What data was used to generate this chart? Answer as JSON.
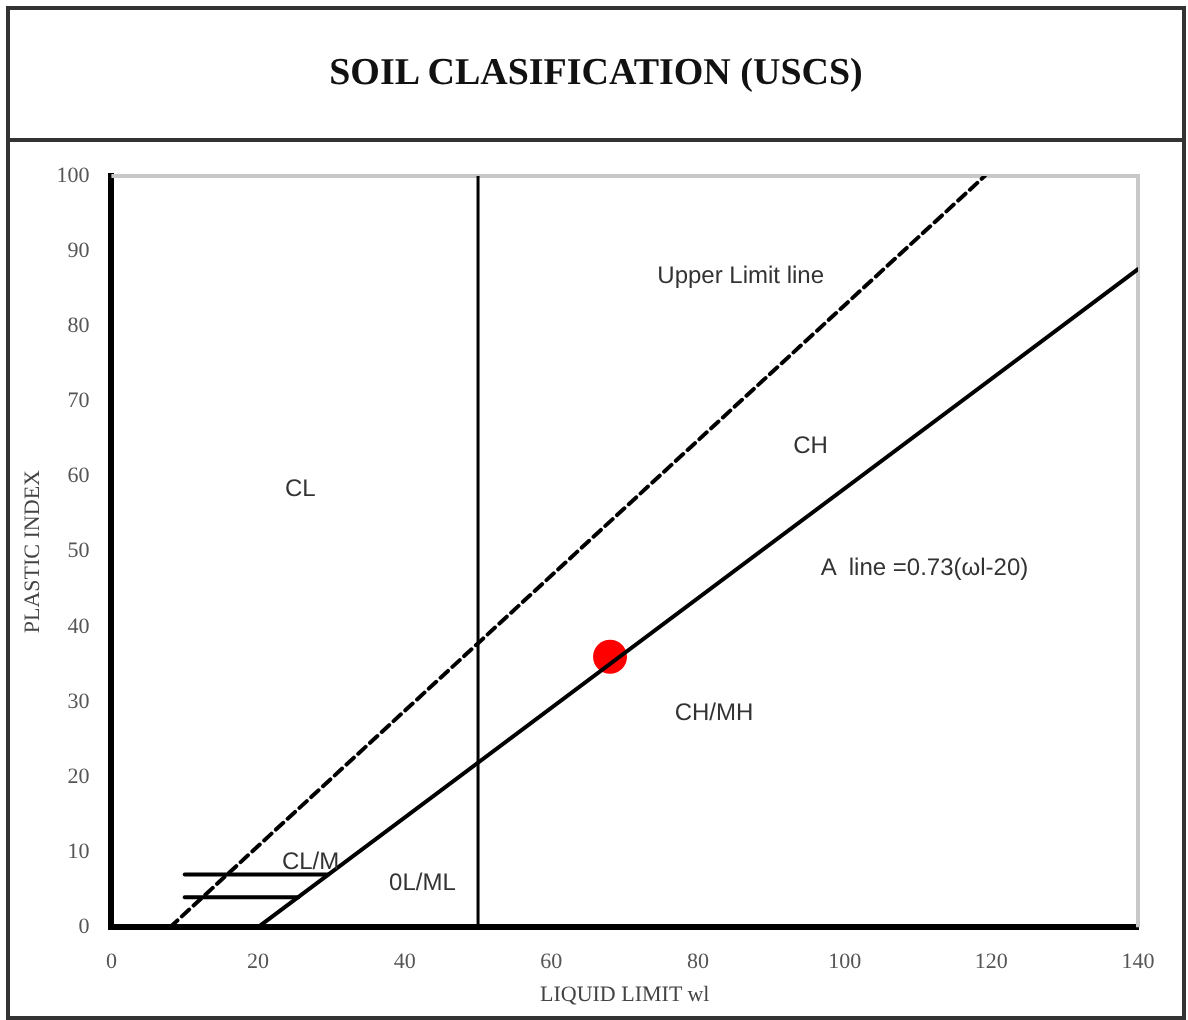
{
  "chart_data": {
    "type": "line",
    "title": "SOIL CLASIFICATION (USCS)",
    "xlabel": "LIQUID LIMIT wl",
    "ylabel": "PLASTIC INDEX",
    "xlim": [
      0,
      140
    ],
    "xticks": [
      0,
      20,
      40,
      60,
      80,
      100,
      120,
      140
    ],
    "ylim": [
      0,
      100
    ],
    "yticks": [
      0,
      10,
      20,
      30,
      40,
      50,
      60,
      70,
      80,
      90,
      100
    ],
    "grid": false,
    "legend": false,
    "series": [
      {
        "color": "#000000",
        "x": [
          20,
          140
        ],
        "values": [
          0,
          87.6
        ],
        "marker": "none",
        "line_style": "solid"
      },
      {
        "color": "#000000",
        "x": [
          8,
          119.1
        ],
        "values": [
          0,
          100
        ],
        "marker": "none",
        "line_style": "dashed"
      },
      {
        "color": "#000000",
        "x": [
          10,
          29.6
        ],
        "values": [
          7,
          7
        ],
        "marker": "none",
        "line_style": "solid"
      },
      {
        "color": "#000000",
        "x": [
          10,
          25.5
        ],
        "values": [
          4,
          4
        ],
        "marker": "none",
        "line_style": "solid"
      },
      {
        "type": "scatter",
        "color": "#ff0000",
        "x": [
          68
        ],
        "values": [
          36
        ],
        "marker": "circle"
      }
    ],
    "ref_lines": [
      {
        "axis": "x",
        "value": 50,
        "color": "#000000"
      }
    ],
    "annotations": [
      "CL",
      "CH",
      "Upper Limit line",
      "A  line =0.73(ωl-20)",
      "CH/MH",
      "CL/M",
      "0L/ML"
    ]
  }
}
